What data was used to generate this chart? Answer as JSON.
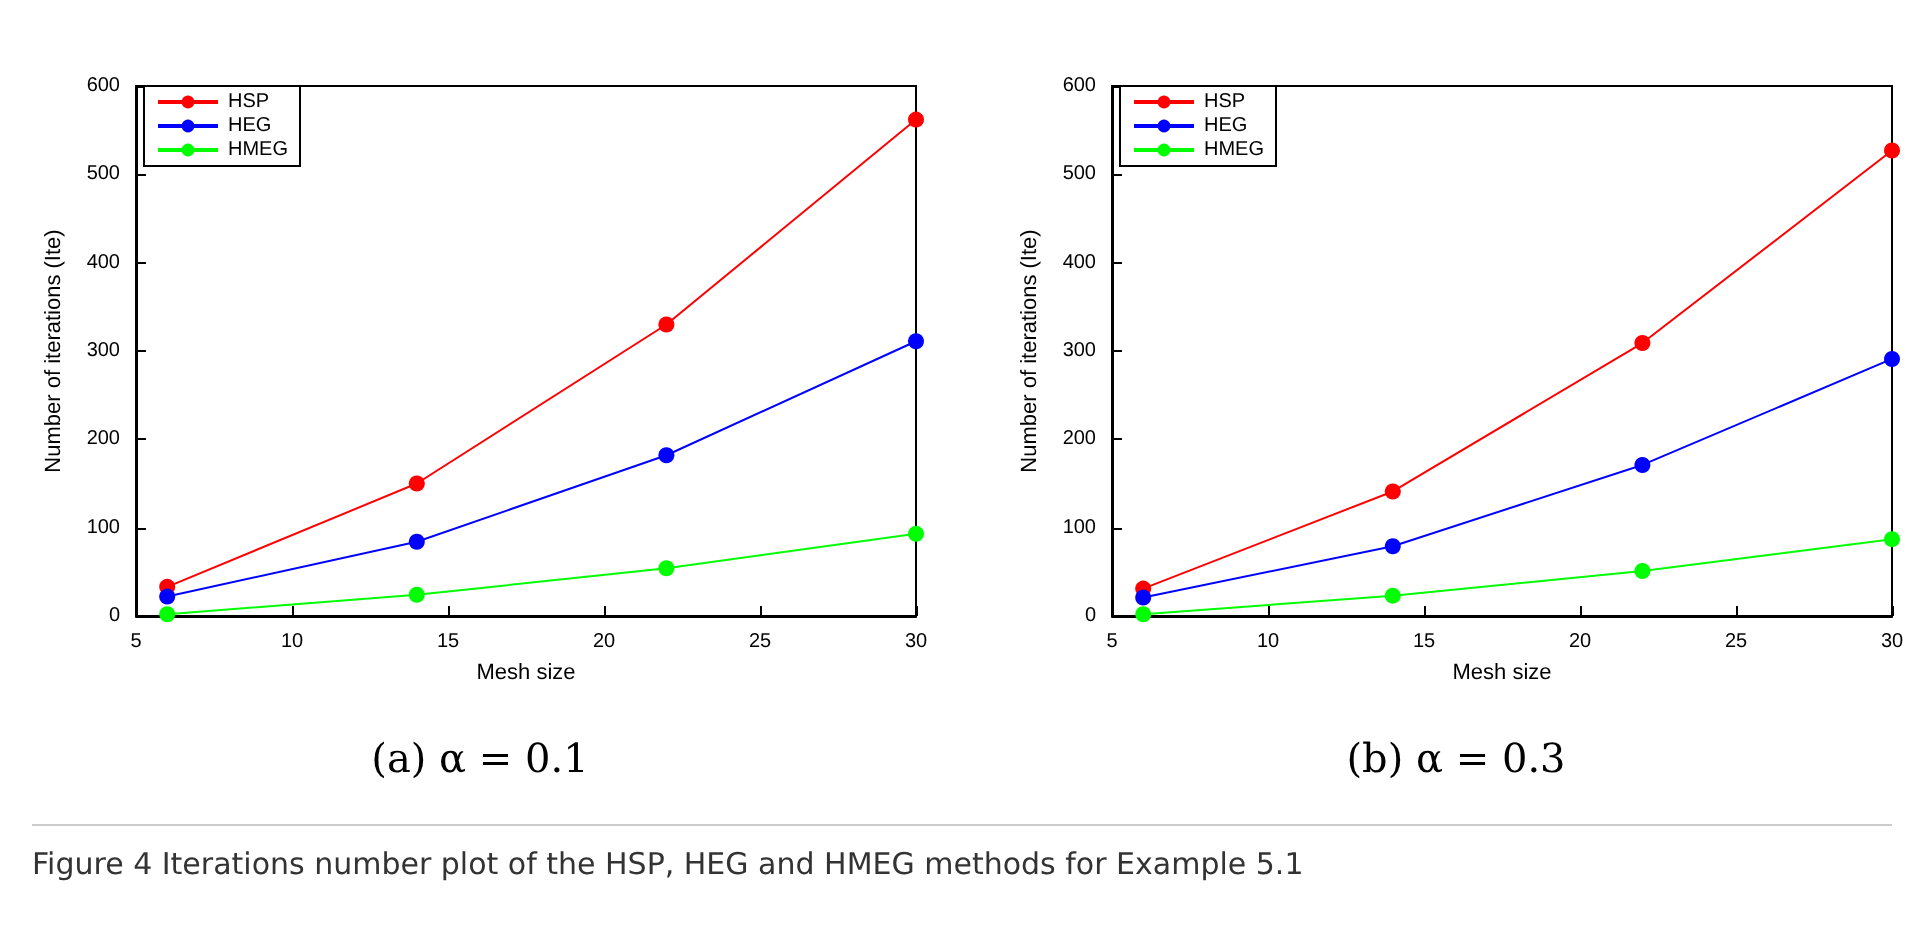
{
  "chart_data": [
    {
      "type": "line",
      "subtitle": "(a) α = 0.1",
      "xlabel": "Mesh size",
      "ylabel": "Number of iterations (Ite)",
      "x": [
        6,
        14,
        22,
        30
      ],
      "xlim": [
        5,
        30
      ],
      "xticks": [
        5,
        10,
        15,
        20,
        25,
        30
      ],
      "ylim": [
        0,
        600
      ],
      "yticks": [
        0,
        100,
        200,
        300,
        400,
        500,
        600
      ],
      "grid": false,
      "legend": "top left",
      "marker": "circle",
      "line_style": "solid",
      "series": [
        {
          "name": "HSP",
          "color": "#ff0000",
          "values": [
            33,
            150,
            330,
            562
          ]
        },
        {
          "name": "HEG",
          "color": "#0000ff",
          "values": [
            22,
            84,
            182,
            311
          ]
        },
        {
          "name": "HMEG",
          "color": "#00ff00",
          "values": [
            2,
            24,
            54,
            93
          ]
        }
      ]
    },
    {
      "type": "line",
      "subtitle": "(b) α = 0.3",
      "xlabel": "Mesh size",
      "ylabel": "Number of iterations (Ite)",
      "x": [
        6,
        14,
        22,
        30
      ],
      "xlim": [
        5,
        30
      ],
      "xticks": [
        5,
        10,
        15,
        20,
        25,
        30
      ],
      "ylim": [
        0,
        600
      ],
      "yticks": [
        0,
        100,
        200,
        300,
        400,
        500,
        600
      ],
      "grid": false,
      "legend": "top left",
      "marker": "circle",
      "line_style": "solid",
      "annotations": [
        "Figure 4  Iterations number plot of the HSP, HEG and HMEG methods for Example 5.1"
      ],
      "series": [
        {
          "name": "HSP",
          "color": "#ff0000",
          "values": [
            31,
            141,
            309,
            527
          ]
        },
        {
          "name": "HEG",
          "color": "#0000ff",
          "values": [
            21,
            79,
            171,
            291
          ]
        },
        {
          "name": "HMEG",
          "color": "#00ff00",
          "values": [
            2,
            23,
            51,
            87
          ]
        }
      ]
    }
  ]
}
